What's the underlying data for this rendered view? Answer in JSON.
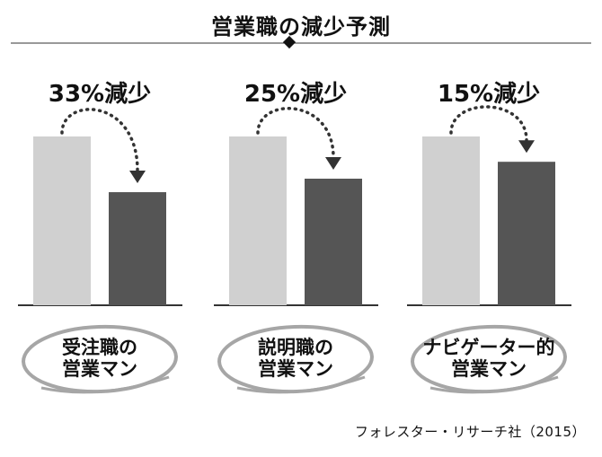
{
  "chart_data": {
    "type": "bar",
    "title": "営業職の減少予測",
    "groups": [
      {
        "label_lines": [
          "受注職の",
          "営業マン"
        ],
        "change_label": "33%減少",
        "values": [
          100,
          67
        ]
      },
      {
        "label_lines": [
          "説明職の",
          "営業マン"
        ],
        "change_label": "25%減少",
        "values": [
          100,
          75
        ]
      },
      {
        "label_lines": [
          "ナビゲーター的",
          "営業マン"
        ],
        "change_label": "15%減少",
        "values": [
          100,
          85
        ]
      }
    ],
    "ylim": [
      0,
      100
    ],
    "grid": false,
    "legend": "none",
    "colors": {
      "before": "#d0d0d0",
      "after": "#555555",
      "line": "#333333",
      "oval": "#a6a6a6"
    }
  },
  "source": "フォレスター・リサーチ社（2015）"
}
